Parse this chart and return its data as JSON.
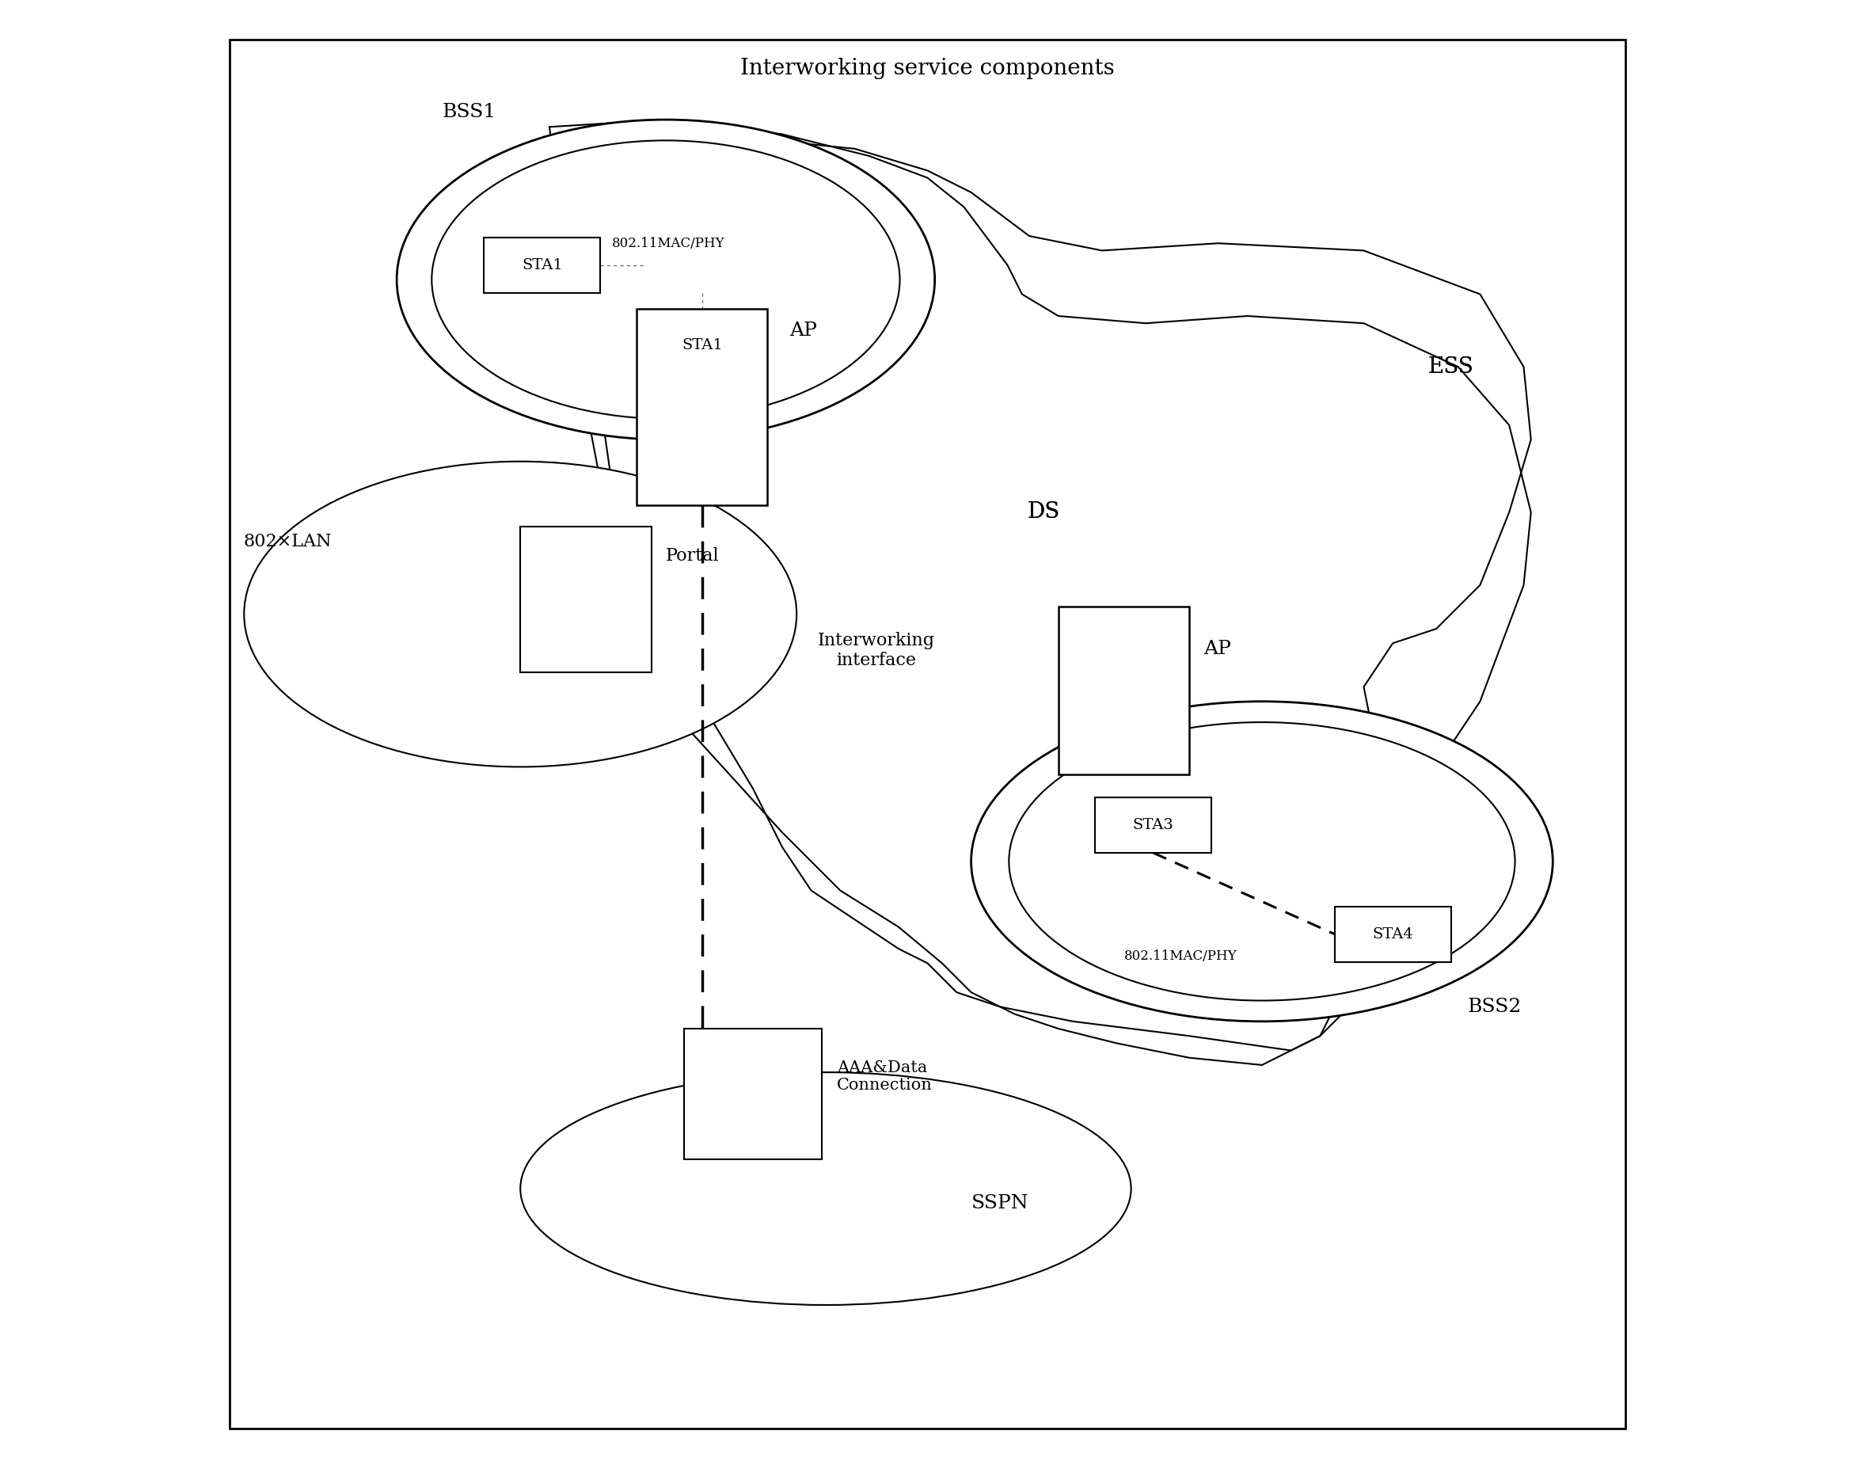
{
  "title": "Interworking service components",
  "fig_width": 23.43,
  "fig_height": 18.45,
  "labels": {
    "title": "Interworking service components",
    "bss1": "BSS1",
    "bss2": "BSS2",
    "ess": "ESS",
    "ds": "DS",
    "ap1": "AP",
    "ap2": "AP",
    "sta1_inner": "STA1",
    "sta1_ap": "STA1",
    "sta3": "STA3",
    "sta4": "STA4",
    "portal": "Portal",
    "lan": "802×LAN",
    "interworking": "Interworking\ninterface",
    "aaa": "AAA&Data\nConnection",
    "sspn": "SSPN",
    "mac_phy1": "802.11MAC/PHY",
    "mac_phy2": "802.11MAC/PHY"
  }
}
